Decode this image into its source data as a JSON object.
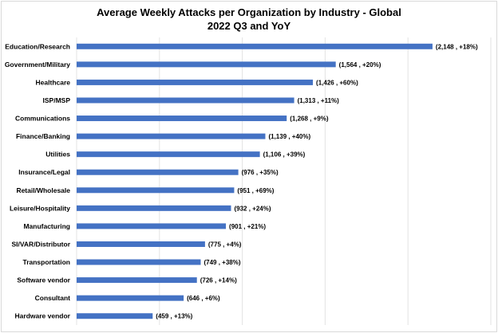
{
  "chart_data": {
    "type": "bar",
    "orientation": "horizontal",
    "title": "Average Weekly Attacks per Organization by Industry - Global",
    "subtitle": "2022 Q3 and YoY",
    "categories": [
      "Education/Research",
      "Government/Military",
      "Healthcare",
      "ISP/MSP",
      "Communications",
      "Finance/Banking",
      "Utilities",
      "Insurance/Legal",
      "Retail/Wholesale",
      "Leisure/Hospitality",
      "Manufacturing",
      "SI/VAR/Distributor",
      "Transportation",
      "Software vendor",
      "Consultant",
      "Hardware vendor"
    ],
    "values": [
      2148,
      1564,
      1426,
      1313,
      1268,
      1139,
      1106,
      976,
      951,
      932,
      901,
      775,
      749,
      726,
      646,
      459
    ],
    "data_labels": [
      "(2,148 , +18%)",
      "(1,564 , +20%)",
      "(1,426 , +60%)",
      "(1,313 , +11%)",
      "(1,268 , +9%)",
      "(1,139 , +40%)",
      "(1,106 , +39%)",
      "(976 , +35%)",
      "(951 , +69%)",
      "(932 , +24%)",
      "(901 , +21%)",
      "(775 , +4%)",
      "(749 , +38%)",
      "(726 , +14%)",
      "(646 , +6%)",
      "(459 , +13%)"
    ],
    "xlim": [
      0,
      2500
    ],
    "grid": true,
    "bar_color": "#4472c4"
  }
}
